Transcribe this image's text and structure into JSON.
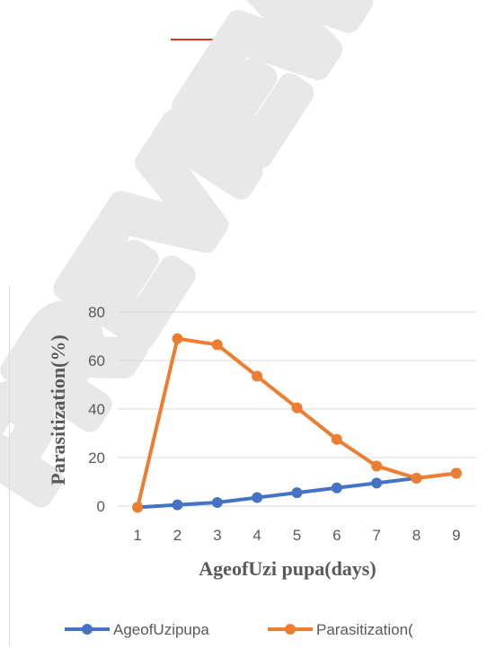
{
  "watermark": {
    "text": "PREVIEW",
    "color": "#e8e8e8"
  },
  "colors": {
    "red_line": "#d9342b",
    "grid": "#d9d9d9",
    "text": "#595959"
  },
  "chart_data": {
    "type": "line",
    "title": "",
    "xlabel": "AgeofUzi pupa(days)",
    "ylabel": "Parasitization(%)",
    "categories": [
      "1",
      "2",
      "3",
      "4",
      "5",
      "6",
      "7",
      "8",
      "9"
    ],
    "ylim": [
      0,
      80
    ],
    "yticks": [
      0,
      20,
      40,
      60,
      80
    ],
    "grid": true,
    "legend_position": "bottom",
    "series": [
      {
        "name": "AgeofUzipupa",
        "color": "#4472c4",
        "values": [
          -0.5,
          0.5,
          1.5,
          3.5,
          5.5,
          7.5,
          9.5,
          11.5,
          13.5
        ]
      },
      {
        "name": "Parasitization(",
        "color": "#ed7d31",
        "values": [
          -0.5,
          69,
          66.5,
          53.5,
          40.5,
          27.5,
          16.5,
          11.5,
          13.5
        ]
      }
    ]
  }
}
